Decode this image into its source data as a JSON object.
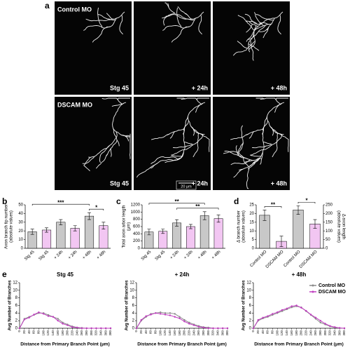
{
  "panel_a": {
    "label": "a",
    "rows": [
      "Control MO",
      "DSCAM MO"
    ],
    "columns": [
      "Stg 45",
      "+ 24h",
      "+ 48h"
    ],
    "scale_bar": "20 μm"
  },
  "chart_data": [
    {
      "type": "bar",
      "panel": "b",
      "ylabel": [
        "Axon branch tip number",
        "(absolute values)"
      ],
      "categories": [
        "Stg 45",
        "Stg 45",
        "+ 24h",
        "+ 24h",
        "+ 48h",
        "+ 48h"
      ],
      "colors": [
        "#c8c8c8",
        "#f2c6f2",
        "#c8c8c8",
        "#f2c6f2",
        "#c8c8c8",
        "#f2c6f2"
      ],
      "series": [
        {
          "values": [
            19,
            21,
            30,
            23,
            37,
            26
          ],
          "errors": [
            3,
            2.5,
            3,
            3,
            4,
            4
          ]
        }
      ],
      "ylim": [
        0,
        50
      ],
      "yticks": [
        0,
        10,
        20,
        30,
        40,
        50
      ],
      "annotations": [
        {
          "text": "***",
          "from": 0,
          "to": 4
        },
        {
          "text": "*",
          "from": 4,
          "to": 5
        }
      ]
    },
    {
      "type": "bar",
      "panel": "c",
      "ylabel": [
        "Total axon arbor length",
        "(μm)"
      ],
      "categories": [
        "Stg 45",
        "Stg 45",
        "+ 24h",
        "+ 24h",
        "+ 48h",
        "+ 48h"
      ],
      "colors": [
        "#c8c8c8",
        "#f2c6f2",
        "#c8c8c8",
        "#f2c6f2",
        "#c8c8c8",
        "#f2c6f2"
      ],
      "series": [
        {
          "values": [
            450,
            470,
            700,
            600,
            900,
            820
          ],
          "errors": [
            80,
            60,
            90,
            60,
            110,
            100
          ]
        }
      ],
      "ylim": [
        0,
        1200
      ],
      "yticks": [
        0,
        200,
        400,
        600,
        800,
        1000,
        1200
      ],
      "annotations": [
        {
          "text": "**",
          "from": 0,
          "to": 4
        },
        {
          "text": "**",
          "from": 2,
          "to": 5
        }
      ]
    },
    {
      "type": "bar",
      "panel": "d",
      "ylabel": [
        "Δ branch number",
        "(absolute values)"
      ],
      "y2label": [
        "Δ axon length",
        "(absolute values)"
      ],
      "categories": [
        "Control MO",
        "DSCAM MO",
        "Control MO",
        "DSCAM MO"
      ],
      "colors": [
        "#c8c8c8",
        "#f2c6f2",
        "#c8c8c8",
        "#f2c6f2"
      ],
      "series": [
        {
          "values": [
            19,
            4,
            null,
            null
          ],
          "errors": [
            3,
            3,
            null,
            null
          ]
        },
        {
          "axis": "y2",
          "values": [
            null,
            null,
            220,
            140
          ],
          "errors": [
            null,
            null,
            25,
            25
          ]
        }
      ],
      "ylim": [
        0,
        25
      ],
      "yticks": [
        0,
        5,
        10,
        15,
        20,
        25
      ],
      "y2lim": [
        0,
        250
      ],
      "y2ticks": [
        0,
        50,
        100,
        150,
        200,
        250
      ],
      "annotations": [
        {
          "text": "**",
          "from": 0,
          "to": 1
        },
        {
          "text": "*",
          "from": 2,
          "to": 3
        }
      ]
    },
    {
      "type": "line",
      "panel": "e",
      "title": "Stg 45",
      "xlabel": "Distance from Primary Branch Point (μm)",
      "ylabel": "Avg Number of Branches",
      "x": [
        0,
        20,
        40,
        60,
        80,
        100,
        120,
        140,
        160,
        180,
        200,
        220,
        240,
        260,
        280,
        300,
        320,
        340,
        360,
        380
      ],
      "xlim": [
        0,
        380
      ],
      "xticks": [
        0,
        20,
        40,
        60,
        80,
        100,
        120,
        140,
        160,
        180,
        200,
        220,
        240,
        260,
        280,
        300,
        320,
        340,
        360,
        380
      ],
      "ylim": [
        0,
        12
      ],
      "yticks": [
        0,
        2,
        4,
        6,
        8,
        10,
        12
      ],
      "series": [
        {
          "name": "Control MO",
          "color": "#8c8c8c",
          "values": [
            0,
            2.5,
            3,
            3.5,
            4,
            4,
            3.5,
            3,
            2.5,
            1.5,
            1,
            0.5,
            0.2,
            0.1,
            0,
            0,
            0,
            0,
            0,
            0
          ]
        },
        {
          "name": "DSCAM MO",
          "color": "#c040c0",
          "values": [
            0,
            2.3,
            2.8,
            3.6,
            4.2,
            3.8,
            3.2,
            3,
            2,
            1.2,
            0.8,
            0.3,
            0.2,
            0,
            0,
            0,
            0,
            0,
            0,
            0
          ]
        }
      ]
    },
    {
      "type": "line",
      "title": "+ 24h",
      "xlabel": "Distance from Primary Branch Point (μm)",
      "ylabel": "Avg Number of Branches",
      "x": [
        0,
        20,
        40,
        60,
        80,
        100,
        120,
        140,
        160,
        180,
        200,
        220,
        240,
        260,
        280,
        300,
        320,
        340,
        360,
        380
      ],
      "xlim": [
        0,
        380
      ],
      "xticks": [
        0,
        20,
        40,
        60,
        80,
        100,
        120,
        140,
        160,
        180,
        200,
        220,
        240,
        260,
        280,
        300,
        320,
        340,
        360,
        380
      ],
      "ylim": [
        0,
        12
      ],
      "yticks": [
        0,
        2,
        4,
        6,
        8,
        10,
        12
      ],
      "series": [
        {
          "name": "Control MO",
          "color": "#8c8c8c",
          "values": [
            0,
            2,
            3,
            3.8,
            4,
            4.2,
            4,
            4,
            3.8,
            3,
            2.2,
            1.5,
            1,
            0.6,
            0.3,
            0.2,
            0,
            0,
            0,
            0
          ]
        },
        {
          "name": "DSCAM MO",
          "color": "#c040c0",
          "values": [
            0,
            2.2,
            3.2,
            3.6,
            4,
            3.8,
            3.6,
            3.4,
            3,
            2.6,
            1.8,
            1.2,
            0.8,
            0.4,
            0.2,
            0,
            0,
            0,
            0,
            0
          ]
        }
      ]
    },
    {
      "type": "line",
      "title": "+ 48h",
      "xlabel": "Distance from Primary Branch Point (μm)",
      "ylabel": "Avg Number of Branches",
      "legend": "upper right",
      "x": [
        0,
        20,
        40,
        60,
        80,
        100,
        120,
        140,
        160,
        180,
        200,
        220,
        240,
        260,
        280,
        300,
        320,
        340,
        360,
        380
      ],
      "xlim": [
        0,
        380
      ],
      "xticks": [
        0,
        20,
        40,
        60,
        80,
        100,
        120,
        140,
        160,
        180,
        200,
        220,
        240,
        260,
        280,
        300,
        320,
        340,
        360,
        380
      ],
      "ylim": [
        0,
        12
      ],
      "yticks": [
        0,
        2,
        4,
        6,
        8,
        10,
        12
      ],
      "series": [
        {
          "name": "Control MO",
          "color": "#8c8c8c",
          "values": [
            0,
            2,
            2.6,
            3,
            3.5,
            4,
            4.5,
            5,
            5.5,
            5.8,
            5.5,
            4.5,
            3.5,
            2.5,
            1.5,
            1,
            0.5,
            0.2,
            0,
            0
          ]
        },
        {
          "name": "DSCAM MO",
          "color": "#c040c0",
          "values": [
            0,
            2.2,
            2.8,
            3.2,
            3.8,
            4.2,
            4.8,
            5.2,
            5.8,
            6,
            5.4,
            4.6,
            3.6,
            2.8,
            2,
            1.2,
            0.6,
            0.3,
            0.1,
            0
          ]
        }
      ]
    }
  ]
}
